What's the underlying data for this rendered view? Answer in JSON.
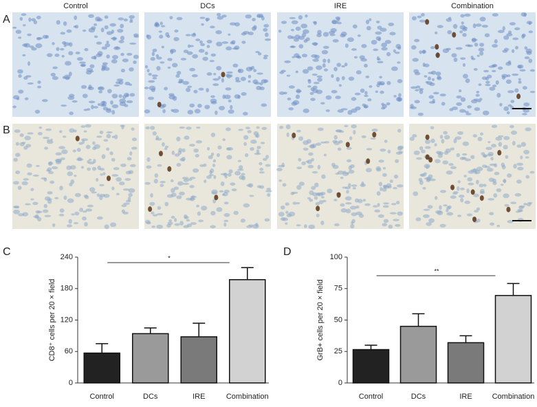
{
  "panel_labels": [
    "A",
    "B",
    "C",
    "D"
  ],
  "image_columns": [
    "Control",
    "DCs",
    "IRE",
    "Combination"
  ],
  "chart_data": [
    {
      "type": "bar",
      "ylabel": "CD8⁺ cells per 20 × field",
      "categories": [
        "Control",
        "DCs",
        "IRE",
        "Combination"
      ],
      "values": [
        57,
        94,
        88,
        197
      ],
      "errors": [
        18,
        11,
        26,
        23
      ],
      "colors": [
        "#222222",
        "#9a9a9a",
        "#7a7a7a",
        "#d2d2d2"
      ],
      "ylim": [
        0,
        240
      ],
      "yticks": [
        0,
        60,
        120,
        180,
        240
      ],
      "significance": "*"
    },
    {
      "type": "bar",
      "ylabel": "GrB+ cells per 20 × field",
      "categories": [
        "Control",
        "DCs",
        "IRE",
        "Combination"
      ],
      "values": [
        26.5,
        45,
        32,
        69.5
      ],
      "errors": [
        3.5,
        10,
        5.5,
        9.5
      ],
      "colors": [
        "#222222",
        "#9a9a9a",
        "#7a7a7a",
        "#d2d2d2"
      ],
      "ylim": [
        0,
        100
      ],
      "yticks": [
        0,
        25,
        50,
        75,
        100
      ],
      "significance": "**"
    }
  ]
}
